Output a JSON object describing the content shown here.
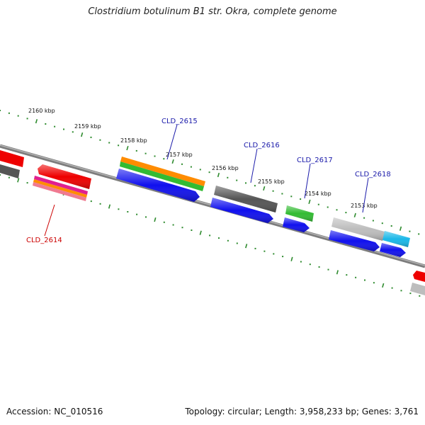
{
  "title": "Clostridium botulinum B1 str. Okra, complete genome",
  "footer": {
    "accession": "Accession: NC_010516",
    "summary": "Topology: circular; Length: 3,958,233 bp; Genes: 3,761"
  },
  "scale_labels": [
    "2160 kbp",
    "2159 kbp",
    "2158 kbp",
    "2157 kbp",
    "2156 kbp",
    "2155 kbp",
    "2154 kbp",
    "2153 kbp"
  ],
  "gene_labels": [
    {
      "text": "CLD_2615",
      "strand": "forward"
    },
    {
      "text": "CLD_2616",
      "strand": "forward"
    },
    {
      "text": "CLD_2617",
      "strand": "forward"
    },
    {
      "text": "CLD_2618",
      "strand": "forward"
    },
    {
      "text": "CLD_2614",
      "strand": "reverse"
    }
  ],
  "colors": {
    "forward_label": "#1a1aaa",
    "reverse_label": "#cc0000",
    "scale_tick": "#2e8b2e",
    "backbone": "#8a8a8a",
    "red": "#ee0000",
    "grey_dark": "#555555",
    "grey_light": "#bdbdbd",
    "blue": "#1010ee",
    "green": "#33bb33",
    "orange": "#ff8c00",
    "cyan": "#1ab8e8",
    "magenta": "#e0208f"
  }
}
